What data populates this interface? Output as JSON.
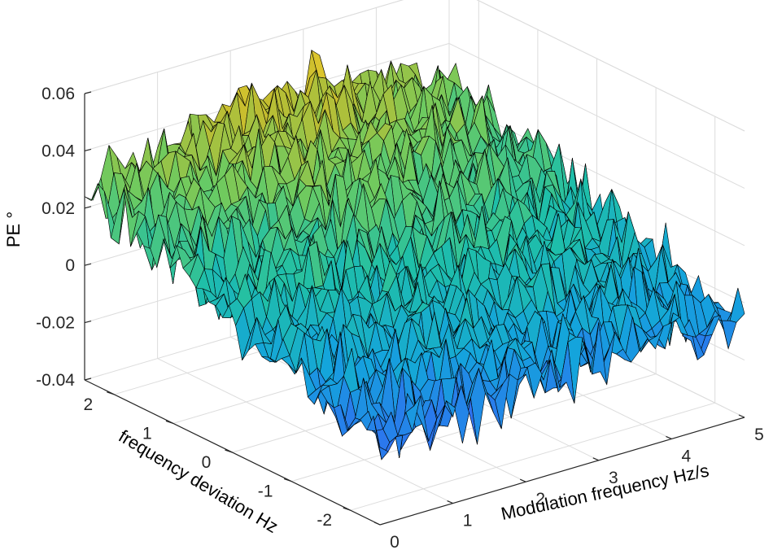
{
  "chart_data": {
    "type": "surface",
    "title": "",
    "xlabel": "Modulation frequency Hz/s",
    "ylabel": "frequency deviation Hz",
    "zlabel": "PE °",
    "x_ticks": [
      "0",
      "1",
      "2",
      "3",
      "4",
      "5"
    ],
    "y_ticks": [
      "2",
      "1",
      "0",
      "-1",
      "-2"
    ],
    "z_ticks": [
      "0.06",
      "0.04",
      "0.02",
      "0",
      "-0.02",
      "-0.04"
    ],
    "xlim": [
      0,
      5
    ],
    "ylim": [
      -2.5,
      2.5
    ],
    "zlim": [
      -0.04,
      0.06
    ],
    "grid": true,
    "colormap": [
      "#3e26a8",
      "#2f6ff0",
      "#14a4dc",
      "#1fbfa8",
      "#6acb62",
      "#c4bc2e",
      "#fbd12f"
    ],
    "grid_size": [
      46,
      46
    ],
    "surface_trend": {
      "x": [
        0,
        1,
        2,
        3,
        4,
        5
      ],
      "y_at_plus_2_5": [
        0.026,
        0.034,
        0.039,
        0.041,
        0.036,
        0.026
      ],
      "y_at_minus_2_5": [
        -0.014,
        -0.011,
        -0.008,
        -0.006,
        -0.006,
        -0.007
      ]
    },
    "noise_amplitude": 0.009
  }
}
